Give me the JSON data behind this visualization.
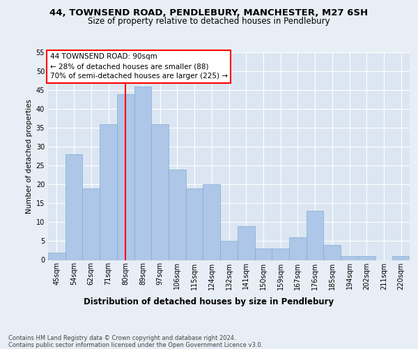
{
  "title1": "44, TOWNSEND ROAD, PENDLEBURY, MANCHESTER, M27 6SH",
  "title2": "Size of property relative to detached houses in Pendlebury",
  "xlabel": "Distribution of detached houses by size in Pendlebury",
  "ylabel": "Number of detached properties",
  "categories": [
    "45sqm",
    "54sqm",
    "62sqm",
    "71sqm",
    "80sqm",
    "89sqm",
    "97sqm",
    "106sqm",
    "115sqm",
    "124sqm",
    "132sqm",
    "141sqm",
    "150sqm",
    "159sqm",
    "167sqm",
    "176sqm",
    "185sqm",
    "194sqm",
    "202sqm",
    "211sqm",
    "220sqm"
  ],
  "values": [
    2,
    28,
    19,
    36,
    44,
    46,
    36,
    24,
    19,
    20,
    5,
    9,
    3,
    3,
    6,
    13,
    4,
    1,
    1,
    0,
    1
  ],
  "bar_color": "#aec6e8",
  "bar_edge_color": "#7aafd4",
  "vline_color": "red",
  "vline_index": 4.5,
  "ylim": [
    0,
    55
  ],
  "yticks": [
    0,
    5,
    10,
    15,
    20,
    25,
    30,
    35,
    40,
    45,
    50,
    55
  ],
  "annotation_text": "44 TOWNSEND ROAD: 90sqm\n← 28% of detached houses are smaller (88)\n70% of semi-detached houses are larger (225) →",
  "annotation_box_color": "white",
  "annotation_box_edgecolor": "red",
  "footer": "Contains HM Land Registry data © Crown copyright and database right 2024.\nContains public sector information licensed under the Open Government Licence v3.0.",
  "background_color": "#e8eef5",
  "plot_bg_color": "#dce6f2",
  "grid_color": "#ffffff",
  "title1_fontsize": 9.5,
  "title2_fontsize": 8.5,
  "ylabel_fontsize": 7.5,
  "xlabel_fontsize": 8.5,
  "tick_fontsize": 7,
  "annot_fontsize": 7.5,
  "footer_fontsize": 6
}
